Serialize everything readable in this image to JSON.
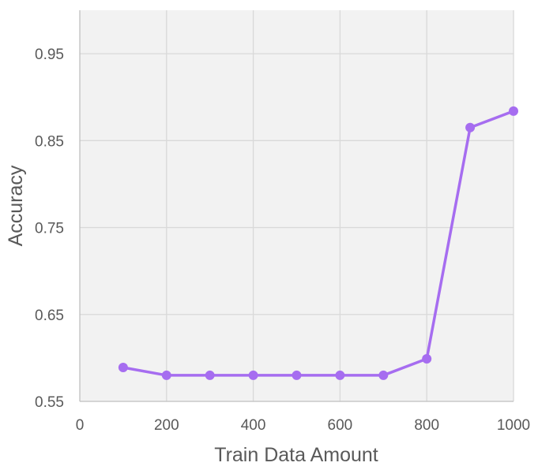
{
  "chart_data": {
    "type": "line",
    "title": "",
    "xlabel": "Train Data Amount",
    "ylabel": "Accuracy",
    "xlim": [
      0,
      1000
    ],
    "ylim": [
      0.55,
      1.0
    ],
    "xticks": [
      "0",
      "200",
      "400",
      "600",
      "800",
      "1000"
    ],
    "yticks": [
      "0.55",
      "0.65",
      "0.75",
      "0.85",
      "0.95"
    ],
    "grid": true,
    "legend": "none",
    "series": [
      {
        "x": [
          100,
          200,
          300,
          400,
          500,
          600,
          700,
          800,
          900,
          1000
        ],
        "y": [
          0.589,
          0.58,
          0.58,
          0.58,
          0.58,
          0.58,
          0.58,
          0.599,
          0.865,
          0.884
        ],
        "color": "#a66df0"
      }
    ],
    "colors": {
      "plot_background": "#f2f2f2",
      "grid": "#d9d9d9",
      "axis": "#bfbfbf",
      "text": "#595959"
    }
  }
}
